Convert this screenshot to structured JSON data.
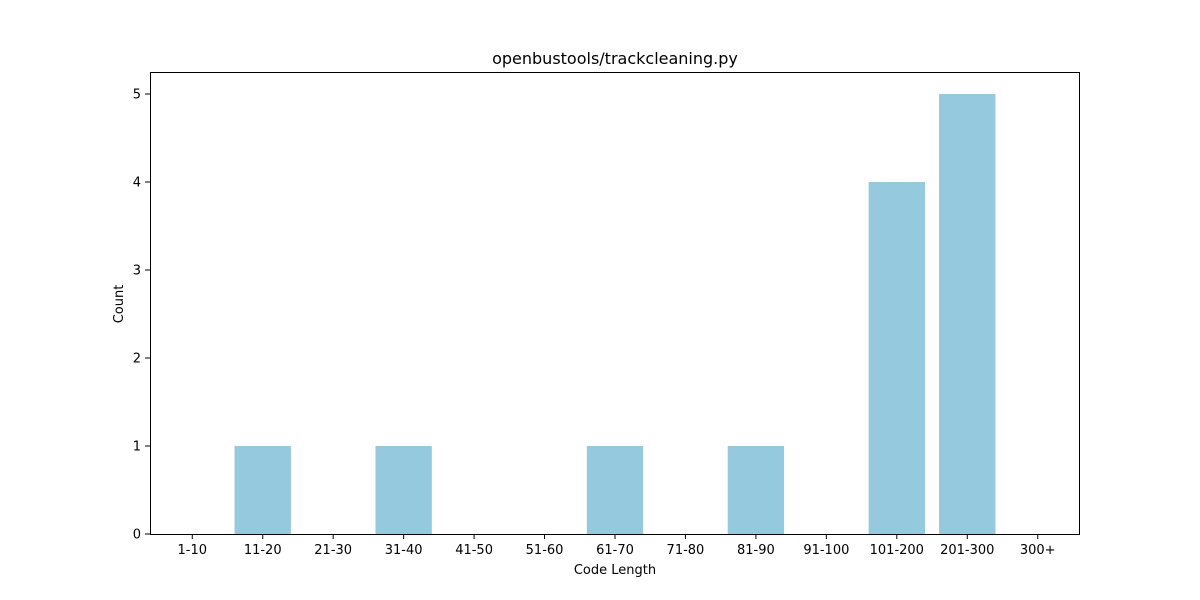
{
  "chart_data": {
    "type": "bar",
    "title": "openbustools/trackcleaning.py",
    "xlabel": "Code Length",
    "ylabel": "Count",
    "categories": [
      "1-10",
      "11-20",
      "21-30",
      "31-40",
      "41-50",
      "51-60",
      "61-70",
      "71-80",
      "81-90",
      "91-100",
      "101-200",
      "201-300",
      "300+"
    ],
    "values": [
      0,
      1,
      0,
      1,
      0,
      0,
      1,
      0,
      1,
      0,
      4,
      5,
      0
    ],
    "ylim": [
      0,
      5.25
    ],
    "yticks": [
      "0",
      "1",
      "2",
      "3",
      "4",
      "5"
    ],
    "bar_color": "#95c9dd",
    "grid": false,
    "legend": "none"
  }
}
